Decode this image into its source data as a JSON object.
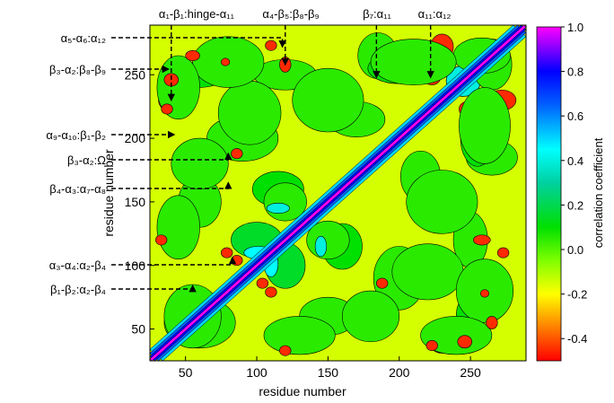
{
  "chart_data": {
    "type": "heatmap",
    "title": "",
    "xlabel": "residue number",
    "ylabel": "residue number",
    "xlim": [
      25,
      289
    ],
    "ylim": [
      25,
      289
    ],
    "x_ticks": [
      50,
      100,
      150,
      200,
      250
    ],
    "y_ticks": [
      50,
      100,
      150,
      200,
      250
    ],
    "colorbar": {
      "label": "correlation coefficient",
      "range": [
        -0.5,
        1.0
      ],
      "ticks": [
        "1.0",
        "0.8",
        "0.6",
        "0.4",
        "0.2",
        "0.0",
        "-0.2",
        "-0.4"
      ],
      "tick_values": [
        1.0,
        0.8,
        0.6,
        0.4,
        0.2,
        0.0,
        -0.2,
        -0.4
      ],
      "colormap": [
        {
          "value": -0.5,
          "color": "#ff0000"
        },
        {
          "value": -0.35,
          "color": "#ff7f00"
        },
        {
          "value": -0.2,
          "color": "#ffff00"
        },
        {
          "value": -0.05,
          "color": "#7fff00"
        },
        {
          "value": 0.1,
          "color": "#00e000"
        },
        {
          "value": 0.3,
          "color": "#00d0a0"
        },
        {
          "value": 0.45,
          "color": "#00ffff"
        },
        {
          "value": 0.65,
          "color": "#0060ff"
        },
        {
          "value": 0.8,
          "color": "#0000ff"
        },
        {
          "value": 0.9,
          "color": "#8000ff"
        },
        {
          "value": 1.0,
          "color": "#ff00ff"
        }
      ]
    },
    "diagonal_value": 1.0,
    "background_value": -0.15,
    "regions": [
      {
        "x": 120,
        "y": 250,
        "rx": 22,
        "ry": 12,
        "value": 0.05
      },
      {
        "x": 60,
        "y": 250,
        "rx": 18,
        "ry": 10,
        "value": 0.1
      },
      {
        "x": 185,
        "y": 265,
        "rx": 14,
        "ry": 18,
        "value": 0.05
      },
      {
        "x": 200,
        "y": 255,
        "rx": 22,
        "ry": 12,
        "value": 0.1
      },
      {
        "x": 245,
        "y": 245,
        "rx": 12,
        "ry": 12,
        "value": 0.4
      },
      {
        "x": 265,
        "y": 258,
        "rx": 14,
        "ry": 20,
        "value": 0.05
      },
      {
        "x": 40,
        "y": 230,
        "rx": 9,
        "ry": 9,
        "value": -0.45
      },
      {
        "x": 223,
        "y": 248,
        "rx": 6,
        "ry": 6,
        "value": -0.45
      },
      {
        "x": 272,
        "y": 230,
        "rx": 10,
        "ry": 8,
        "value": -0.45
      },
      {
        "x": 90,
        "y": 200,
        "rx": 25,
        "ry": 18,
        "value": 0.05
      },
      {
        "x": 170,
        "y": 215,
        "rx": 20,
        "ry": 14,
        "value": 0.05
      },
      {
        "x": 260,
        "y": 210,
        "rx": 18,
        "ry": 30,
        "value": 0.05
      },
      {
        "x": 115,
        "y": 160,
        "rx": 18,
        "ry": 14,
        "value": 0.1
      },
      {
        "x": 60,
        "y": 150,
        "rx": 15,
        "ry": 20,
        "value": 0.05
      },
      {
        "x": 230,
        "y": 150,
        "rx": 25,
        "ry": 25,
        "value": 0.05
      },
      {
        "x": 100,
        "y": 120,
        "rx": 18,
        "ry": 14,
        "value": 0.15
      },
      {
        "x": 150,
        "y": 120,
        "rx": 15,
        "ry": 15,
        "value": 0.05
      },
      {
        "x": 220,
        "y": 95,
        "rx": 25,
        "ry": 22,
        "value": 0.05
      },
      {
        "x": 260,
        "y": 80,
        "rx": 20,
        "ry": 25,
        "value": 0.05
      },
      {
        "x": 60,
        "y": 55,
        "rx": 25,
        "ry": 20,
        "value": 0.05
      },
      {
        "x": 130,
        "y": 45,
        "rx": 25,
        "ry": 15,
        "value": 0.05
      },
      {
        "x": 180,
        "y": 60,
        "rx": 20,
        "ry": 20,
        "value": 0.05
      },
      {
        "x": 240,
        "y": 45,
        "rx": 25,
        "ry": 15,
        "value": 0.05
      },
      {
        "x": 86,
        "y": 104,
        "rx": 4,
        "ry": 4,
        "value": -0.45
      },
      {
        "x": 86,
        "y": 188,
        "rx": 4,
        "ry": 4,
        "value": -0.45
      },
      {
        "x": 110,
        "y": 79,
        "rx": 4,
        "ry": 4,
        "value": -0.45
      },
      {
        "x": 120,
        "y": 258,
        "rx": 4,
        "ry": 6,
        "value": -0.45
      },
      {
        "x": 78,
        "y": 260,
        "rx": 3,
        "ry": 3,
        "value": -0.45
      },
      {
        "x": 265,
        "y": 55,
        "rx": 4,
        "ry": 5,
        "value": -0.45
      },
      {
        "x": 273,
        "y": 110,
        "rx": 4,
        "ry": 4,
        "value": -0.45
      },
      {
        "x": 246,
        "y": 40,
        "rx": 5,
        "ry": 5,
        "value": -0.45
      },
      {
        "x": 223,
        "y": 37,
        "rx": 4,
        "ry": 4,
        "value": -0.45
      },
      {
        "x": 120,
        "y": 33,
        "rx": 4,
        "ry": 4,
        "value": -0.45
      },
      {
        "x": 101,
        "y": 110,
        "rx": 10,
        "ry": 5,
        "value": 0.45
      },
      {
        "x": 115,
        "y": 145,
        "rx": 8,
        "ry": 4,
        "value": 0.4
      }
    ],
    "annotations": [
      {
        "text": "α₅-α₆:α₁₂",
        "side": "left",
        "x": 118,
        "y": 272
      },
      {
        "text": "β₃-α₂:β₈-β₉",
        "side": "left",
        "x": 38,
        "y": 256
      },
      {
        "text": "α₉-α₁₀:β₁-β₂",
        "side": "left",
        "x": 42,
        "y": 204
      },
      {
        "text": "β₃-α₂:Ω",
        "side": "left",
        "x": 80,
        "y": 188
      },
      {
        "text": "β₄-α₃:α₇-α₈",
        "side": "left",
        "x": 80,
        "y": 165
      },
      {
        "text": "α₃-α₄:α₂-β₄",
        "side": "left",
        "x": 83,
        "y": 106
      },
      {
        "text": "β₁-β₂:α₂-β₄",
        "side": "left",
        "x": 55,
        "y": 84
      },
      {
        "text": "α₁-β₁:hinge-α₁₁",
        "side": "top",
        "x": 40,
        "y": 230
      },
      {
        "text": "α₄-β₅:β₈-β₉",
        "side": "top",
        "x": 120,
        "y": 258
      },
      {
        "text": "β₇:α₁₁",
        "side": "top",
        "x": 184,
        "y": 248
      },
      {
        "text": "α₁₁:α₁₂",
        "side": "top",
        "x": 222,
        "y": 248
      }
    ]
  }
}
